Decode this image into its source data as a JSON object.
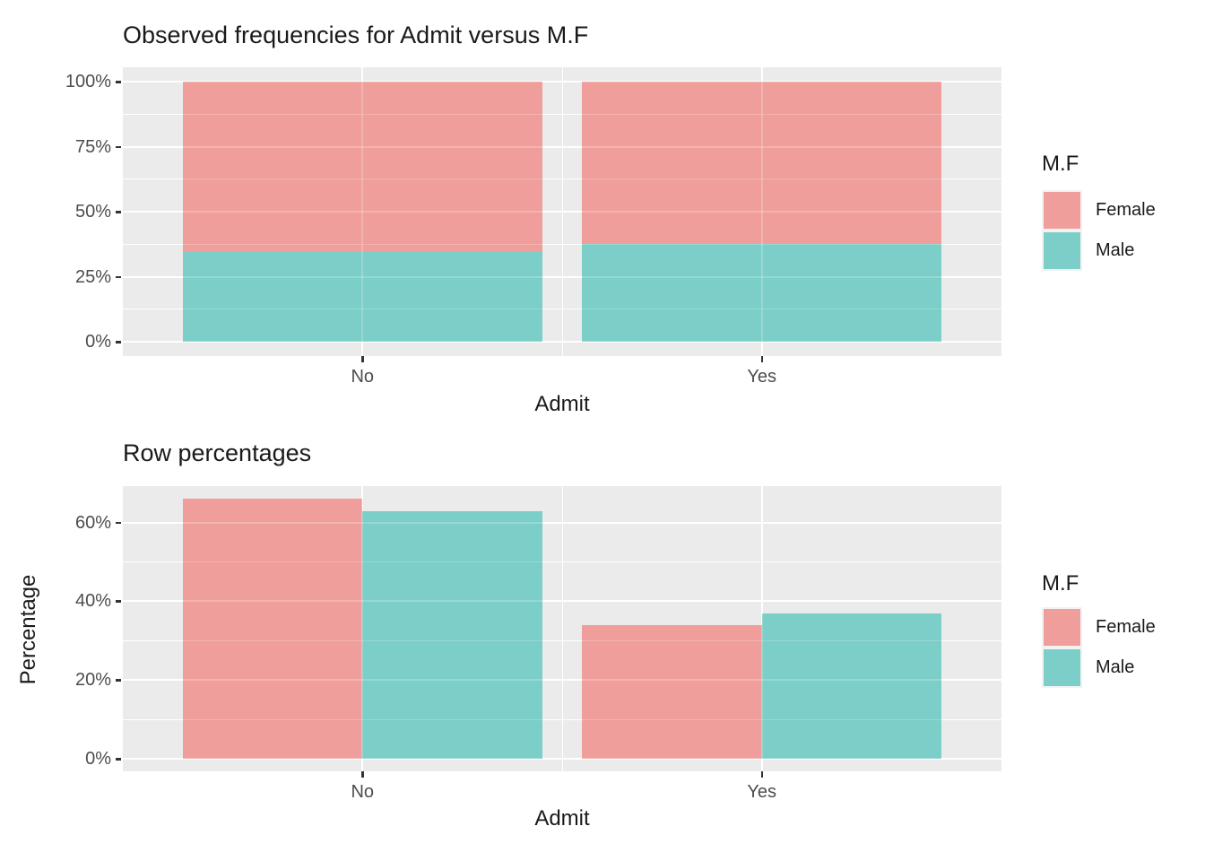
{
  "colors": {
    "female": "#EF9E9B",
    "male": "#7CCEC8",
    "panel_background": "#EBEBEB",
    "gridline": "#FFFFFF",
    "axis_text": "#4D4D4D",
    "title_text": "#1A1A1A",
    "tick_mark": "#333333",
    "legend_key_background": "#F2F2F2"
  },
  "chart_data": [
    {
      "id": "observed-frequencies",
      "type": "bar",
      "subtype": "stacked-fill",
      "title": "Observed frequencies for Admit versus M.F",
      "xlabel": "Admit",
      "ylabel": "",
      "categories": [
        "No",
        "Yes"
      ],
      "series": [
        {
          "name": "Female",
          "color_key": "female",
          "values": [
            65.4,
            62.5
          ]
        },
        {
          "name": "Male",
          "color_key": "male",
          "values": [
            34.6,
            37.5
          ]
        }
      ],
      "stack_bottom_to_top": [
        "Male",
        "Female"
      ],
      "y_tick_labels": [
        "0%",
        "25%",
        "50%",
        "75%",
        "100%"
      ],
      "y_tick_values": [
        0,
        25,
        50,
        75,
        100
      ],
      "y_minor_values": [
        12.5,
        37.5,
        62.5,
        87.5
      ],
      "ylim": [
        0,
        100
      ],
      "grid": true,
      "legend": {
        "title": "M.F",
        "position": "right",
        "entries": [
          {
            "label": "Female",
            "color_key": "female"
          },
          {
            "label": "Male",
            "color_key": "male"
          }
        ]
      }
    },
    {
      "id": "row-percentages",
      "type": "bar",
      "subtype": "grouped",
      "title": "Row percentages",
      "xlabel": "Admit",
      "ylabel": "Percentage",
      "categories": [
        "No",
        "Yes"
      ],
      "series": [
        {
          "name": "Female",
          "color_key": "female",
          "values": [
            66,
            34
          ]
        },
        {
          "name": "Male",
          "color_key": "male",
          "values": [
            63,
            37
          ]
        }
      ],
      "y_tick_labels": [
        "0%",
        "20%",
        "40%",
        "60%"
      ],
      "y_tick_values": [
        0,
        20,
        40,
        60
      ],
      "y_minor_values": [
        10,
        30,
        50
      ],
      "ylim": [
        0,
        69.3
      ],
      "grid": true,
      "legend": {
        "title": "M.F",
        "position": "right",
        "entries": [
          {
            "label": "Female",
            "color_key": "female"
          },
          {
            "label": "Male",
            "color_key": "male"
          }
        ]
      }
    }
  ]
}
